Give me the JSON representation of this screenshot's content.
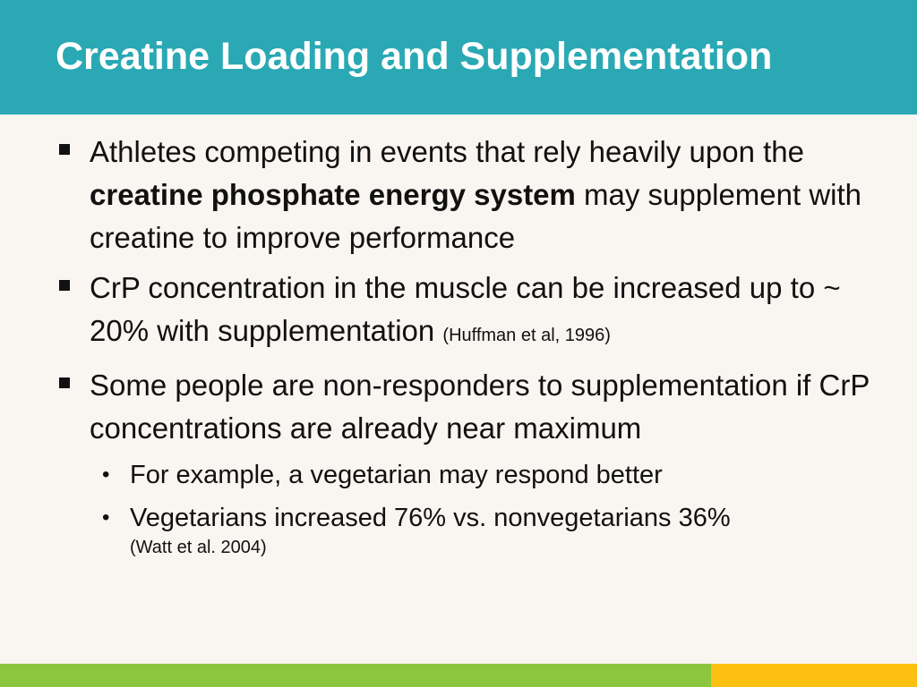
{
  "slide": {
    "title": "Creatine Loading and Supplementation",
    "bullets": [
      {
        "pre": "Athletes competing in events that rely heavily upon the ",
        "bold": "creatine phosphate energy system",
        "post": " may supplement with creatine to improve performance"
      },
      {
        "text": "CrP concentration in the muscle can be increased up to ~ 20% with supplementation ",
        "cite": "(Huffman et al, 1996)"
      },
      {
        "text": "Some people are non-responders to supplementation if CrP concentrations are already near maximum",
        "subbullets": [
          {
            "text": "For example, a vegetarian may respond better"
          },
          {
            "text": "Vegetarians increased 76% vs. nonvegetarians 36%",
            "cite": "(Watt et al. 2004)"
          }
        ]
      }
    ]
  },
  "colors": {
    "header": "#2aa9b4",
    "background": "#f9f5f1",
    "footer_green": "#8cc63f",
    "footer_yellow": "#fdc010"
  }
}
